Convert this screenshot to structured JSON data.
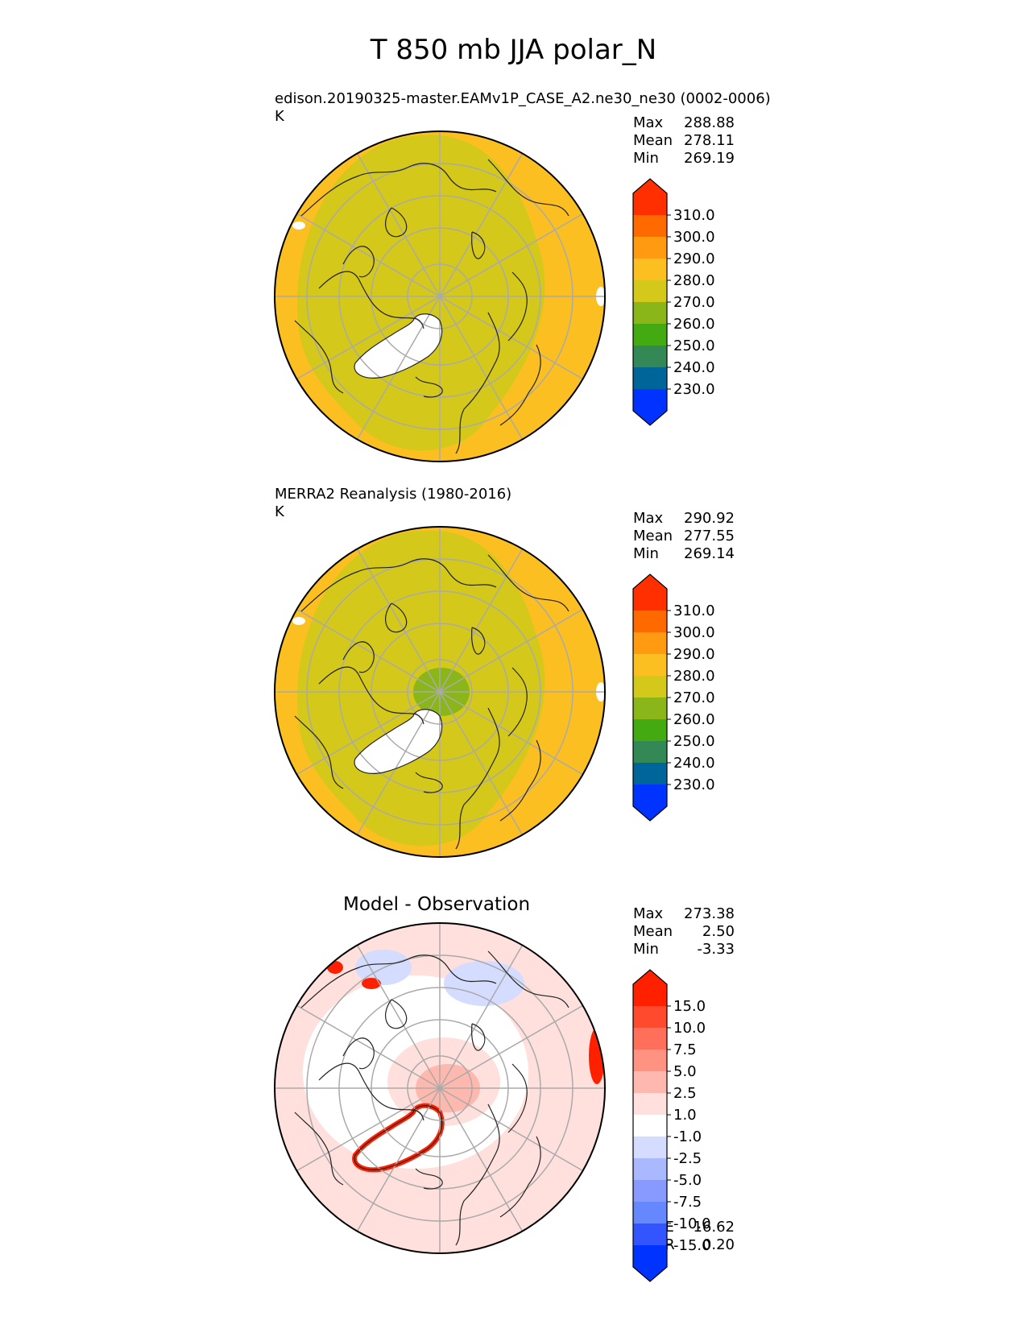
{
  "title": "T 850 mb JJA polar_N",
  "colors": {
    "abs_levels": [
      "#0033ff",
      "#006699",
      "#338855",
      "#44aa11",
      "#8ab61a",
      "#d4c81a",
      "#fbbf22",
      "#ff9a11",
      "#ff6a00",
      "#ff2f00"
    ],
    "diff_levels": [
      "#0033ff",
      "#3355ff",
      "#6688ff",
      "#8899ff",
      "#aab8ff",
      "#d4dcff",
      "#ffffff",
      "#ffe0dc",
      "#ffb8ad",
      "#ff9280",
      "#ff6f59",
      "#ff4a2d",
      "#ff2000"
    ]
  },
  "panels": [
    {
      "id": "test",
      "subtitle": "edison.20190325-master.EAMv1P_CASE_A2.ne30_ne30 (0002-0006)",
      "units": "K",
      "stats": {
        "max_label": "Max",
        "max": "288.88",
        "mean_label": "Mean",
        "mean": "278.11",
        "min_label": "Min",
        "min": "269.19"
      },
      "colorbar_labels": [
        "230.0",
        "240.0",
        "250.0",
        "260.0",
        "270.0",
        "280.0",
        "290.0",
        "300.0",
        "310.0"
      ]
    },
    {
      "id": "reference",
      "subtitle": "MERRA2 Reanalysis (1980-2016)",
      "units": "K",
      "stats": {
        "max_label": "Max",
        "max": "290.92",
        "mean_label": "Mean",
        "mean": "277.55",
        "min_label": "Min",
        "min": "269.14"
      },
      "colorbar_labels": [
        "230.0",
        "240.0",
        "250.0",
        "260.0",
        "270.0",
        "280.0",
        "290.0",
        "300.0",
        "310.0"
      ]
    },
    {
      "id": "diff",
      "plot_title": "Model - Observation",
      "stats": {
        "max_label": "Max",
        "max": "273.38",
        "mean_label": "Mean",
        "mean": "2.50",
        "min_label": "Min",
        "min": "-3.33"
      },
      "colorbar_labels": [
        "-15.0",
        "-10.0",
        "-7.5",
        "-5.0",
        "-2.5",
        "-1.0",
        "1.0",
        "2.5",
        "5.0",
        "7.5",
        "10.0",
        "15.0"
      ],
      "metrics": {
        "rmse_label": "RMSE",
        "rmse": "16.62",
        "corr_label": "CORR",
        "corr": "0.20"
      }
    }
  ],
  "chart_data": [
    {
      "type": "heatmap",
      "title": "edison.20190325-master.EAMv1P_CASE_A2.ne30_ne30 (0002-0006)",
      "units": "K",
      "projection": "north polar stereographic",
      "levels": [
        230,
        240,
        250,
        260,
        270,
        280,
        290,
        300,
        310
      ],
      "max": 288.88,
      "mean": 278.11,
      "min": 269.19
    },
    {
      "type": "heatmap",
      "title": "MERRA2 Reanalysis (1980-2016)",
      "units": "K",
      "projection": "north polar stereographic",
      "levels": [
        230,
        240,
        250,
        260,
        270,
        280,
        290,
        300,
        310
      ],
      "max": 290.92,
      "mean": 277.55,
      "min": 269.14
    },
    {
      "type": "heatmap",
      "title": "Model - Observation",
      "projection": "north polar stereographic",
      "levels": [
        -15,
        -10,
        -7.5,
        -5,
        -2.5,
        -1,
        1,
        2.5,
        5,
        7.5,
        10,
        15
      ],
      "max": 273.38,
      "mean": 2.5,
      "min": -3.33,
      "rmse": 16.62,
      "corr": 0.2
    }
  ]
}
